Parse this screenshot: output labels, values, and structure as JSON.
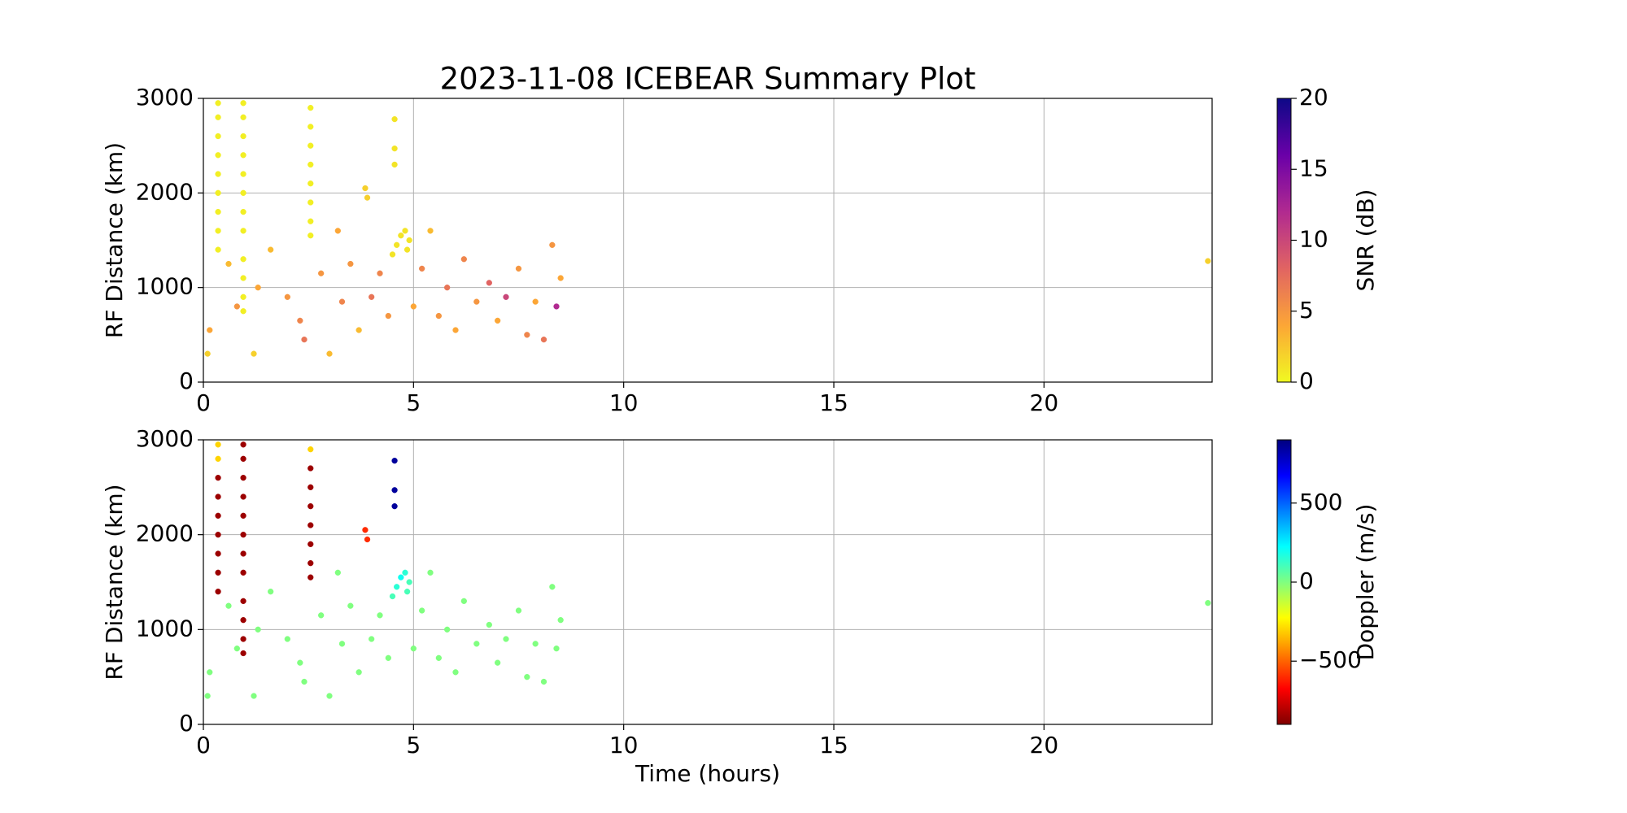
{
  "chart_data": [
    {
      "type": "scatter",
      "title": "2023-11-08 ICEBEAR Summary Plot",
      "ylabel": "RF Distance (km)",
      "colorbar_label": "SNR (dB)",
      "colormap": "plasma_r",
      "grid": true,
      "xlim": [
        0,
        24
      ],
      "ylim": [
        0,
        3000
      ],
      "xticks": [
        0,
        5,
        10,
        15,
        20
      ],
      "yticks": [
        0,
        1000,
        2000,
        3000
      ],
      "clim": [
        0,
        20
      ],
      "cticks": [
        0,
        5,
        10,
        15,
        20
      ],
      "x": [
        0.35,
        0.35,
        0.35,
        0.35,
        0.35,
        0.35,
        0.35,
        0.35,
        0.35,
        0.95,
        0.95,
        0.95,
        0.95,
        0.95,
        0.95,
        0.95,
        0.95,
        0.95,
        0.95,
        0.95,
        0.95,
        2.55,
        2.55,
        2.55,
        2.55,
        2.55,
        2.55,
        2.55,
        2.55,
        0.1,
        0.15,
        0.6,
        0.8,
        1.2,
        1.3,
        1.6,
        2.0,
        2.3,
        2.4,
        2.8,
        3.0,
        3.2,
        3.3,
        3.5,
        3.7,
        3.85,
        3.9,
        4.0,
        4.2,
        4.4,
        4.55,
        4.55,
        4.55,
        5.0,
        5.2,
        5.4,
        5.6,
        5.8,
        6.0,
        6.2,
        6.5,
        6.8,
        7.0,
        7.2,
        7.5,
        7.7,
        7.9,
        8.1,
        8.3,
        8.4,
        8.5,
        23.9,
        4.5,
        4.6,
        4.7,
        4.8,
        4.9,
        4.85
      ],
      "y": [
        1400,
        1600,
        1800,
        2000,
        2200,
        2400,
        2600,
        2800,
        2950,
        750,
        900,
        1100,
        1300,
        1600,
        1800,
        2000,
        2200,
        2400,
        2600,
        2800,
        2950,
        1550,
        1700,
        1900,
        2100,
        2300,
        2500,
        2700,
        2900,
        300,
        550,
        1250,
        800,
        300,
        1000,
        1400,
        900,
        650,
        450,
        1150,
        300,
        1600,
        850,
        1250,
        550,
        2050,
        1950,
        900,
        1150,
        700,
        2780,
        2470,
        2300,
        800,
        1200,
        1600,
        700,
        1000,
        550,
        1300,
        850,
        1050,
        650,
        900,
        1200,
        500,
        850,
        450,
        1450,
        800,
        1100,
        1280,
        1350,
        1450,
        1550,
        1600,
        1500,
        1400
      ],
      "c": [
        0.5,
        0.5,
        0.5,
        0.5,
        0.5,
        0.5,
        0.5,
        0.5,
        0.5,
        0.5,
        0.5,
        0.5,
        0.5,
        0.5,
        0.5,
        0.5,
        0.5,
        0.5,
        0.5,
        0.5,
        0.5,
        0.5,
        0.5,
        0.5,
        0.5,
        0.5,
        0.5,
        0.5,
        0.5,
        2,
        4,
        3,
        5,
        2,
        4,
        3,
        5,
        6,
        7,
        5,
        3,
        4,
        6,
        5,
        3,
        2,
        2,
        7,
        6,
        5,
        1,
        1,
        1,
        4,
        6,
        3,
        5,
        7,
        4,
        6,
        5,
        8,
        4,
        10,
        5,
        6,
        4,
        7,
        5,
        12,
        4,
        2,
        1,
        1,
        1,
        1,
        1,
        1
      ]
    },
    {
      "type": "scatter",
      "ylabel": "RF Distance (km)",
      "xlabel": "Time (hours)",
      "colorbar_label": "Doppler (m/s)",
      "colormap": "jet_r",
      "grid": true,
      "xlim": [
        0,
        24
      ],
      "ylim": [
        0,
        3000
      ],
      "xticks": [
        0,
        5,
        10,
        15,
        20
      ],
      "yticks": [
        0,
        1000,
        2000,
        3000
      ],
      "clim": [
        -900,
        900
      ],
      "cticks": [
        {
          "value": -500,
          "label": "−500"
        },
        0,
        500
      ],
      "x": [
        0.35,
        0.35,
        0.35,
        0.35,
        0.35,
        0.35,
        0.35,
        0.35,
        0.35,
        0.95,
        0.95,
        0.95,
        0.95,
        0.95,
        0.95,
        0.95,
        0.95,
        0.95,
        0.95,
        0.95,
        0.95,
        2.55,
        2.55,
        2.55,
        2.55,
        2.55,
        2.55,
        2.55,
        2.55,
        0.1,
        0.15,
        0.6,
        0.8,
        1.2,
        1.3,
        1.6,
        2.0,
        2.3,
        2.4,
        2.8,
        3.0,
        3.2,
        3.3,
        3.5,
        3.7,
        3.85,
        3.9,
        4.0,
        4.2,
        4.4,
        4.55,
        4.55,
        4.55,
        5.0,
        5.2,
        5.4,
        5.6,
        5.8,
        6.0,
        6.2,
        6.5,
        6.8,
        7.0,
        7.2,
        7.5,
        7.7,
        7.9,
        8.1,
        8.3,
        8.4,
        8.5,
        23.9,
        4.5,
        4.6,
        4.7,
        4.8,
        4.9,
        4.85
      ],
      "y": [
        1400,
        1600,
        1800,
        2000,
        2200,
        2400,
        2600,
        2800,
        2950,
        750,
        900,
        1100,
        1300,
        1600,
        1800,
        2000,
        2200,
        2400,
        2600,
        2800,
        2950,
        1550,
        1700,
        1900,
        2100,
        2300,
        2500,
        2700,
        2900,
        300,
        550,
        1250,
        800,
        300,
        1000,
        1400,
        900,
        650,
        450,
        1150,
        300,
        1600,
        850,
        1250,
        550,
        2050,
        1950,
        900,
        1150,
        700,
        2780,
        2470,
        2300,
        800,
        1200,
        1600,
        700,
        1000,
        550,
        1300,
        850,
        1050,
        650,
        900,
        1200,
        500,
        850,
        450,
        1450,
        800,
        1100,
        1280,
        1350,
        1450,
        1550,
        1600,
        1500,
        1400
      ],
      "c": [
        -850,
        -850,
        -850,
        -850,
        -850,
        -850,
        -850,
        -300,
        -300,
        -850,
        -850,
        -850,
        -850,
        -850,
        -850,
        -850,
        -850,
        -850,
        -850,
        -850,
        -850,
        -850,
        -850,
        -850,
        -850,
        -850,
        -850,
        -850,
        -300,
        0,
        0,
        0,
        0,
        0,
        0,
        0,
        0,
        0,
        0,
        0,
        0,
        0,
        0,
        0,
        0,
        -600,
        -600,
        0,
        0,
        0,
        850,
        850,
        850,
        0,
        0,
        0,
        0,
        0,
        0,
        0,
        0,
        0,
        0,
        0,
        0,
        0,
        0,
        0,
        0,
        0,
        0,
        0,
        100,
        150,
        200,
        150,
        100,
        100
      ]
    }
  ]
}
